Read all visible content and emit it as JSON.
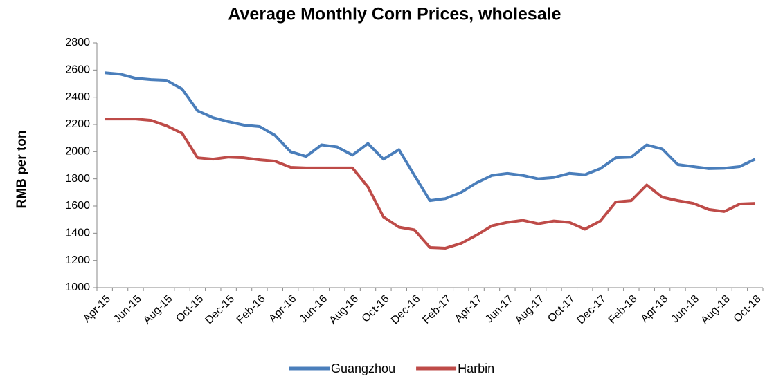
{
  "chart_data": {
    "type": "line",
    "title": "Average Monthly Corn Prices, wholesale",
    "y_label": "RMB per ton",
    "categories": [
      "Apr-15",
      null,
      "Jun-15",
      null,
      "Aug-15",
      null,
      "Oct-15",
      null,
      "Dec-15",
      null,
      "Feb-16",
      null,
      "Apr-16",
      null,
      "Jun-16",
      null,
      "Aug-16",
      null,
      "Oct-16",
      null,
      "Dec-16",
      null,
      "Feb-17",
      null,
      "Apr-17",
      null,
      "Jun-17",
      null,
      "Aug-17",
      null,
      "Oct-17",
      null,
      "Dec-17",
      null,
      "Feb-18",
      null,
      "Apr-18",
      null,
      "Jun-18",
      null,
      "Aug-18",
      null,
      "Oct-18"
    ],
    "series": [
      {
        "name": "Guangzhou",
        "color": "#4a7ebb",
        "values": [
          2580,
          2570,
          2540,
          2530,
          2525,
          2460,
          2300,
          2250,
          2220,
          2195,
          2185,
          2120,
          2000,
          1965,
          2050,
          2035,
          1975,
          2060,
          1945,
          2015,
          1825,
          1640,
          1655,
          1700,
          1770,
          1825,
          1840,
          1825,
          1800,
          1810,
          1840,
          1830,
          1875,
          1955,
          1960,
          2050,
          2020,
          1905,
          1890,
          1875,
          1878,
          1890,
          1945
        ]
      },
      {
        "name": "Harbin",
        "color": "#be4b48",
        "values": [
          2240,
          2240,
          2240,
          2230,
          2190,
          2135,
          1955,
          1945,
          1960,
          1955,
          1940,
          1930,
          1885,
          1880,
          1880,
          1880,
          1880,
          1740,
          1520,
          1445,
          1425,
          1295,
          1290,
          1325,
          1385,
          1455,
          1480,
          1495,
          1470,
          1490,
          1480,
          1430,
          1490,
          1630,
          1640,
          1755,
          1665,
          1640,
          1620,
          1575,
          1560,
          1615,
          1620
        ]
      }
    ],
    "ylim": [
      1000,
      2800
    ],
    "yticks": [
      1000,
      1200,
      1400,
      1600,
      1800,
      2000,
      2200,
      2400,
      2600,
      2800
    ],
    "grid": false,
    "legend": "bottom"
  }
}
